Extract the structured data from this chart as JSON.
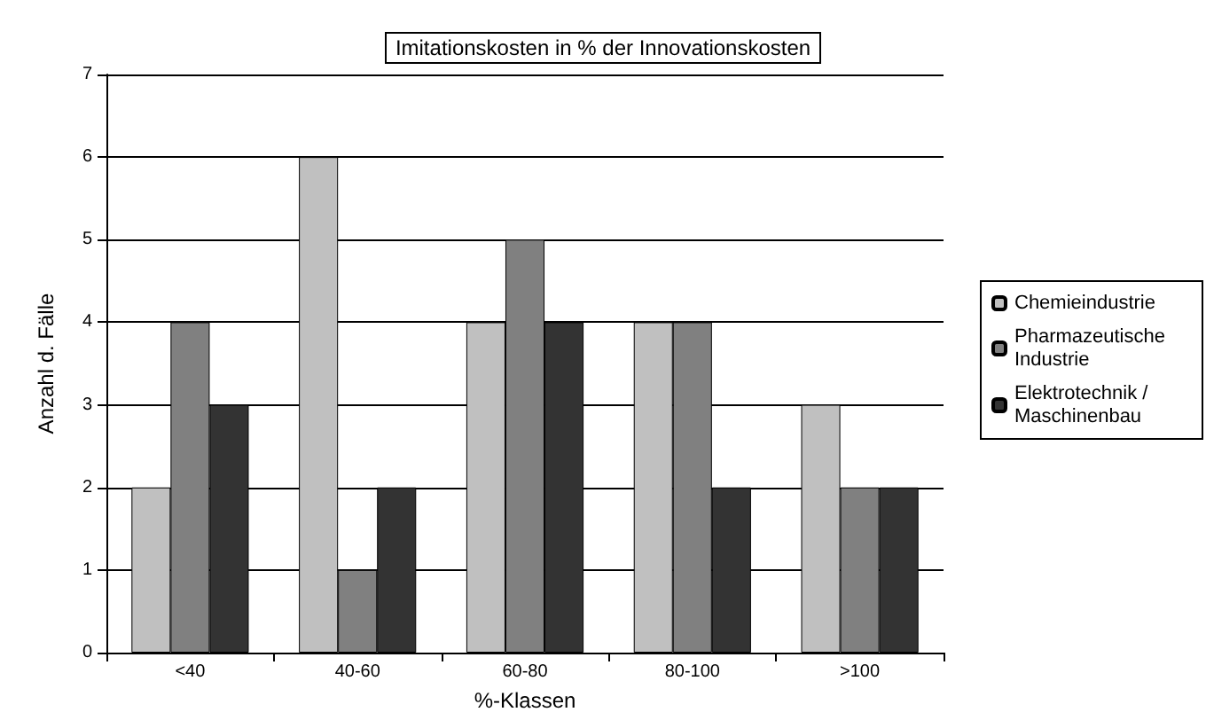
{
  "chart_data": {
    "type": "bar",
    "title": "Imitationskosten in % der Innovationskosten",
    "xlabel": "%-Klassen",
    "ylabel": "Anzahl d. Fälle",
    "categories": [
      "<40",
      "40-60",
      "60-80",
      "80-100",
      ">100"
    ],
    "series": [
      {
        "name": "Chemieindustrie",
        "color": "#c0c0c0",
        "values": [
          2,
          6,
          4,
          4,
          3
        ]
      },
      {
        "name": "Pharmazeutische Industrie",
        "color": "#808080",
        "values": [
          4,
          1,
          5,
          4,
          2
        ]
      },
      {
        "name": "Elektrotechnik / Maschinenbau",
        "color": "#333333",
        "values": [
          3,
          2,
          4,
          2,
          2
        ]
      }
    ],
    "ylim": [
      0,
      7
    ],
    "yticks": [
      0,
      1,
      2,
      3,
      4,
      5,
      6,
      7
    ],
    "grid": "y",
    "legend": "right"
  }
}
